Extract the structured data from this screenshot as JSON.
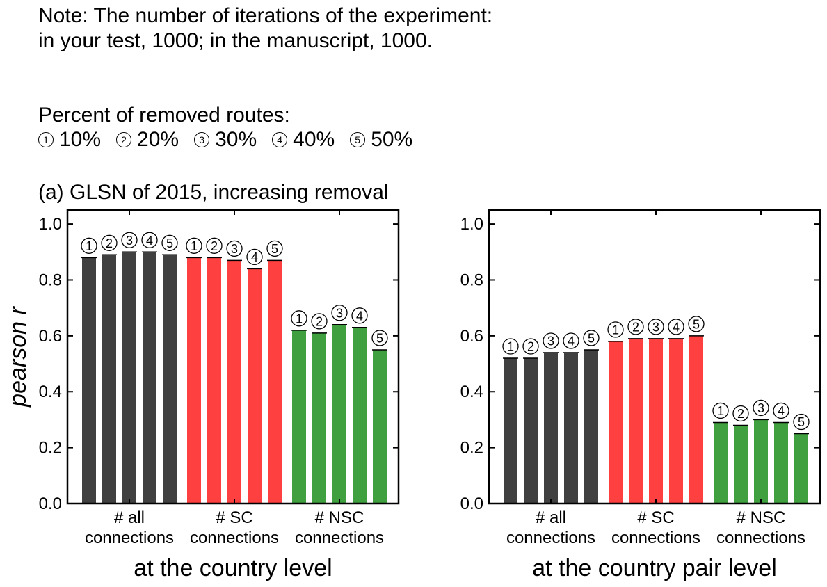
{
  "note": {
    "line1": "Note: The number of iterations of the experiment:",
    "line2": "in your test, 1000; in the manuscript, 1000."
  },
  "legend": {
    "title": "Percent of removed routes:",
    "items": [
      {
        "symbol": "1",
        "label": "10%"
      },
      {
        "symbol": "2",
        "label": "20%"
      },
      {
        "symbol": "3",
        "label": "30%"
      },
      {
        "symbol": "4",
        "label": "40%"
      },
      {
        "symbol": "5",
        "label": "50%"
      }
    ]
  },
  "panel_title": "(a) GLSN of 2015, increasing removal",
  "colors": {
    "all": "#404040",
    "sc": "#ff4040",
    "nsc": "#40a040"
  },
  "chart_data": [
    {
      "type": "bar",
      "title": "",
      "xlabel": "at the country level",
      "ylabel": "pearson r",
      "ylim": [
        0,
        1.05
      ],
      "yticks": [
        "0.0",
        "0.2",
        "0.4",
        "0.6",
        "0.8",
        "1.0"
      ],
      "groups": [
        {
          "label_line1": "# all",
          "label_line2": "connections",
          "color": "#404040",
          "values": [
            0.88,
            0.89,
            0.9,
            0.9,
            0.89
          ]
        },
        {
          "label_line1": "# SC",
          "label_line2": "connections",
          "color": "#ff4040",
          "values": [
            0.88,
            0.88,
            0.87,
            0.84,
            0.87
          ]
        },
        {
          "label_line1": "# NSC",
          "label_line2": "connections",
          "color": "#40a040",
          "values": [
            0.62,
            0.61,
            0.64,
            0.63,
            0.55
          ]
        }
      ],
      "bar_symbols": [
        "1",
        "2",
        "3",
        "4",
        "5"
      ]
    },
    {
      "type": "bar",
      "title": "",
      "xlabel": "at the country pair level",
      "ylabel": "",
      "ylim": [
        0,
        1.05
      ],
      "yticks": [
        "0.0",
        "0.2",
        "0.4",
        "0.6",
        "0.8",
        "1.0"
      ],
      "groups": [
        {
          "label_line1": "# all",
          "label_line2": "connections",
          "color": "#404040",
          "values": [
            0.52,
            0.52,
            0.54,
            0.54,
            0.55
          ]
        },
        {
          "label_line1": "# SC",
          "label_line2": "connections",
          "color": "#ff4040",
          "values": [
            0.58,
            0.59,
            0.59,
            0.59,
            0.6
          ]
        },
        {
          "label_line1": "# NSC",
          "label_line2": "connections",
          "color": "#40a040",
          "values": [
            0.29,
            0.28,
            0.3,
            0.29,
            0.25
          ]
        }
      ],
      "bar_symbols": [
        "1",
        "2",
        "3",
        "4",
        "5"
      ]
    }
  ]
}
